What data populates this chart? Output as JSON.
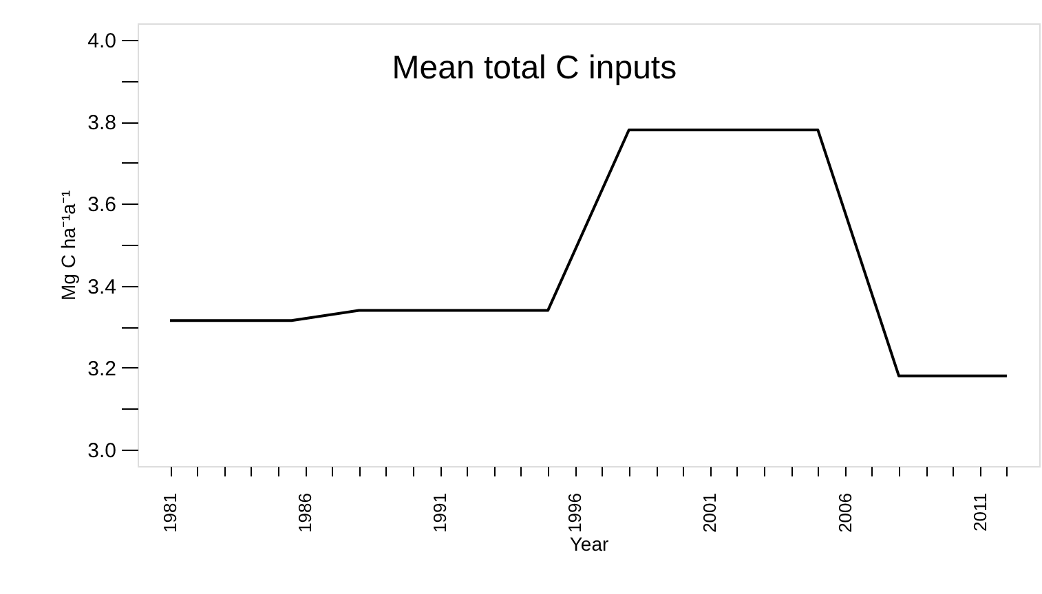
{
  "chart_data": {
    "type": "line",
    "title": "Mean total C inputs",
    "xlabel": "Year",
    "ylabel": "Mg C ha⁻¹a⁻¹",
    "x": [
      1981,
      1985.5,
      1988,
      1995,
      1998,
      2005,
      2008,
      2012
    ],
    "series": [
      {
        "color": "#000000",
        "values": [
          3.315,
          3.315,
          3.34,
          3.34,
          3.78,
          3.78,
          3.18,
          3.18
        ]
      }
    ],
    "xlim": [
      1979.8,
      2013.2
    ],
    "xticks": [
      1981,
      {
        "value": 1982,
        "label": null
      },
      {
        "value": 1983,
        "label": null
      },
      {
        "value": 1984,
        "label": null
      },
      {
        "value": 1985,
        "label": null
      },
      1986,
      {
        "value": 1987,
        "label": null
      },
      {
        "value": 1988,
        "label": null
      },
      {
        "value": 1989,
        "label": null
      },
      {
        "value": 1990,
        "label": null
      },
      1991,
      {
        "value": 1992,
        "label": null
      },
      {
        "value": 1993,
        "label": null
      },
      {
        "value": 1994,
        "label": null
      },
      {
        "value": 1995,
        "label": null
      },
      1996,
      {
        "value": 1997,
        "label": null
      },
      {
        "value": 1998,
        "label": null
      },
      {
        "value": 1999,
        "label": null
      },
      {
        "value": 2000,
        "label": null
      },
      2001,
      {
        "value": 2002,
        "label": null
      },
      {
        "value": 2003,
        "label": null
      },
      {
        "value": 2004,
        "label": null
      },
      {
        "value": 2005,
        "label": null
      },
      2006,
      {
        "value": 2007,
        "label": null
      },
      {
        "value": 2008,
        "label": null
      },
      {
        "value": 2009,
        "label": null
      },
      {
        "value": 2010,
        "label": null
      },
      2011,
      {
        "value": 2012,
        "label": null
      }
    ],
    "ylim": [
      2.96,
      4.04
    ],
    "yticks": [
      {
        "value": 3.0,
        "label": "3.0"
      },
      {
        "value": 3.1,
        "label": null
      },
      {
        "value": 3.2,
        "label": "3.2"
      },
      {
        "value": 3.3,
        "label": null
      },
      {
        "value": 3.4,
        "label": "3.4"
      },
      {
        "value": 3.5,
        "label": null
      },
      {
        "value": 3.6,
        "label": "3.6"
      },
      {
        "value": 3.7,
        "label": null
      },
      {
        "value": 3.8,
        "label": "3.8"
      },
      {
        "value": 3.9,
        "label": null
      },
      {
        "value": 4.0,
        "label": "4.0"
      }
    ],
    "grid": false,
    "marker": "none",
    "line_style": "solid"
  }
}
